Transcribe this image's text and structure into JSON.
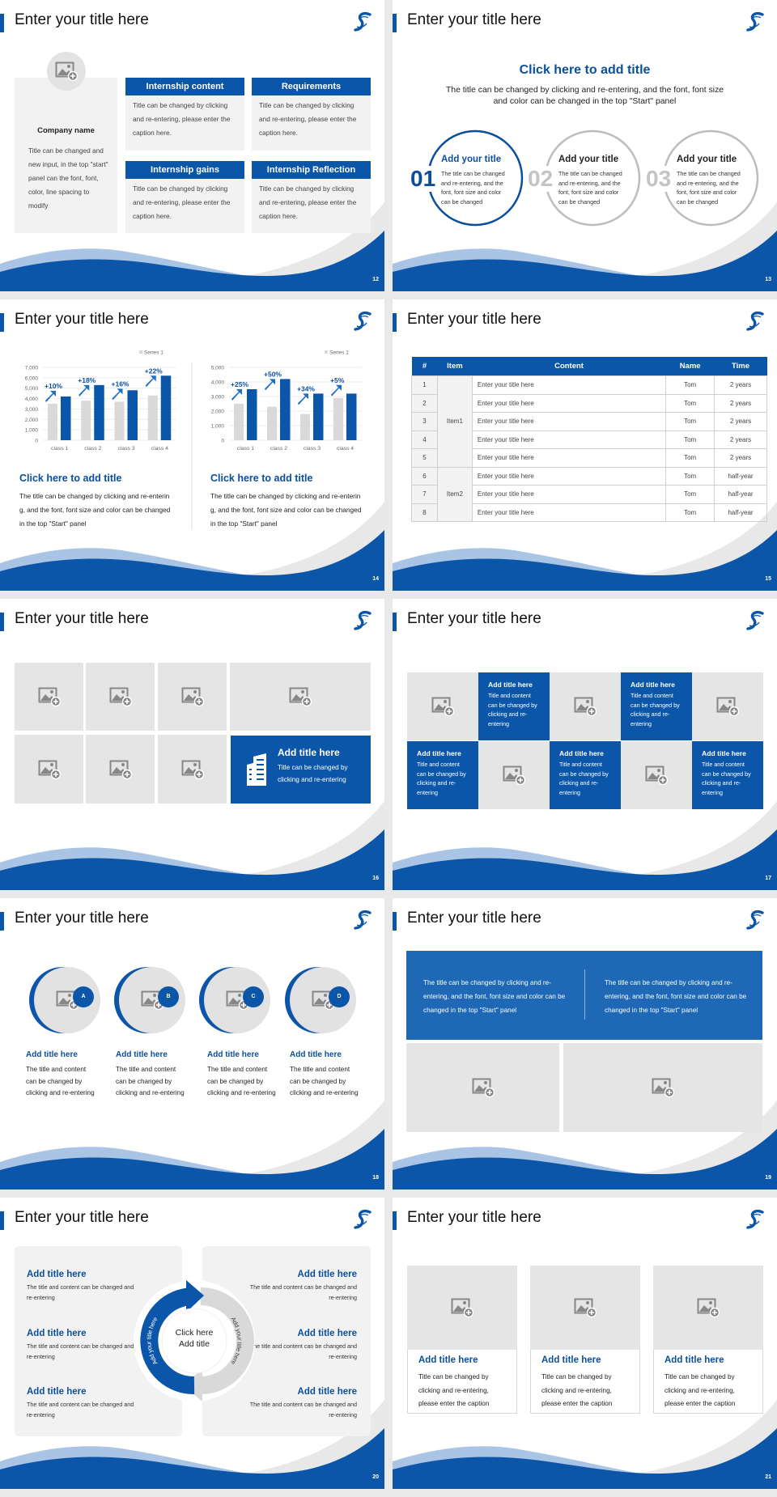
{
  "theme": {
    "blue": "#0b56a8",
    "light_blue": "#a9c4e4",
    "placeholder_gray": "#e6e5e5",
    "panel_gray": "#f2f2f2"
  },
  "icons": {
    "logo": "swirl-s-logo",
    "placeholder": "image-add-icon",
    "building": "building-icon"
  },
  "slides": [
    {
      "title": "Enter your title here",
      "page": "12"
    },
    {
      "title": "Enter your title here",
      "page": "13"
    },
    {
      "title": "Enter your title here",
      "page": "14"
    },
    {
      "title": "Enter your title here",
      "page": "15"
    },
    {
      "title": "Enter your title here",
      "page": "16"
    },
    {
      "title": "Enter your title here",
      "page": "17"
    },
    {
      "title": "Enter your title here",
      "page": "18"
    },
    {
      "title": "Enter your title here",
      "page": "19"
    },
    {
      "title": "Enter your title here",
      "page": "20"
    },
    {
      "title": "Enter your title here",
      "page": "21"
    }
  ],
  "s12": {
    "company": "Company name",
    "company_text": "Title can be changed and new input, in the top \"start\" panel can the font, font, color, line spacing to modify",
    "cards": [
      {
        "header": "Internship content",
        "body": "Title can be changed by clicking and re-entering, please enter the caption here."
      },
      {
        "header": "Requirements",
        "body": "Title can be changed by clicking and re-entering, please enter the caption here."
      },
      {
        "header": "Internship gains",
        "body": "Title can be changed by clicking and re-entering, please enter the caption here."
      },
      {
        "header": "Internship Reflection",
        "body": "Title can be changed by clicking and re-entering, please enter the caption here."
      }
    ]
  },
  "s13": {
    "title": "Click here to add title",
    "subtitle": "The title can be changed by clicking and re-entering, and the font, font size and color can be changed in the top \"Start\" panel",
    "items": [
      {
        "num": "01",
        "title": "Add your title",
        "body": "The title can be changed and re-entering, and the font, font size and color can be changed",
        "active": true
      },
      {
        "num": "02",
        "title": "Add your title",
        "body": "The title can be changed and re-entering, and the font, font size and color can be changed",
        "active": false
      },
      {
        "num": "03",
        "title": "Add your title",
        "body": "The title can be changed and re-entering, and the font, font size and color can be changed",
        "active": false
      }
    ]
  },
  "s14": {
    "panels": [
      {
        "title": "Click here to add title",
        "body": "The title can be changed by clicking and re-entering, and the font, font size and color can be changed in the top \"Start\" panel"
      },
      {
        "title": "Click here to add title",
        "body": "The title can be changed by clicking and re-entering, and the font, font size and color can be changed in the top \"Start\" panel"
      }
    ]
  },
  "chart_data": [
    {
      "type": "bar",
      "categories": [
        "class 1",
        "class 2",
        "class 3",
        "class 4"
      ],
      "series": [
        {
          "name": "Series 1",
          "color": "#d9d9d9",
          "values": [
            3500,
            3800,
            3700,
            4300
          ]
        },
        {
          "color": "#0b56a8",
          "values": [
            4200,
            5300,
            4800,
            6200
          ]
        }
      ],
      "annotations": [
        "+10%",
        "+18%",
        "+16%",
        "+22%"
      ],
      "yticks": [
        "0",
        "1,000",
        "2,000",
        "3,000",
        "4,000",
        "5,000",
        "6,000",
        "7,000"
      ],
      "ylim": [
        0,
        7000
      ],
      "grid": true,
      "legend": "top-right"
    },
    {
      "type": "bar",
      "categories": [
        "class 1",
        "class 2",
        "class 3",
        "class 4"
      ],
      "series": [
        {
          "name": "Series 1",
          "color": "#d9d9d9",
          "values": [
            2500,
            2300,
            1800,
            2900
          ]
        },
        {
          "color": "#0b56a8",
          "values": [
            3500,
            4200,
            3200,
            3200
          ]
        }
      ],
      "annotations": [
        "+25%",
        "+50%",
        "+34%",
        "+5%"
      ],
      "yticks": [
        "0",
        "1,000",
        "2,000",
        "3,000",
        "4,000",
        "5,000"
      ],
      "ylim": [
        0,
        5000
      ],
      "grid": true,
      "legend": "top-right"
    }
  ],
  "s15": {
    "headers": [
      "#",
      "Item",
      "Content",
      "Name",
      "Time"
    ],
    "groups": [
      {
        "label": "Item1",
        "rows": 5
      },
      {
        "label": "Item2",
        "rows": 3
      }
    ],
    "rows": [
      {
        "n": "1",
        "content": "Enter your title here",
        "name": "Tom",
        "time": "2 years"
      },
      {
        "n": "2",
        "content": "Enter your title here",
        "name": "Tom",
        "time": "2 years"
      },
      {
        "n": "3",
        "content": "Enter your title here",
        "name": "Tom",
        "time": "2 years"
      },
      {
        "n": "4",
        "content": "Enter your title here",
        "name": "Tom",
        "time": "2 years"
      },
      {
        "n": "5",
        "content": "Enter your title here",
        "name": "Tom",
        "time": "2 years"
      },
      {
        "n": "6",
        "content": "Enter your title here",
        "name": "Tom",
        "time": "half-year"
      },
      {
        "n": "7",
        "content": "Enter your title here",
        "name": "Tom",
        "time": "half-year"
      },
      {
        "n": "8",
        "content": "Enter your title here",
        "name": "Tom",
        "time": "half-year"
      }
    ]
  },
  "s16": {
    "title": "Add title here",
    "body": "Title can be changed by clicking and re-entering"
  },
  "s17": {
    "items": [
      {
        "title": "Add title here",
        "body": "Title and content can be changed by clicking and re-entering"
      },
      {
        "title": "Add title here",
        "body": "Title and content can be changed by clicking and re-entering"
      },
      {
        "title": "Add title here",
        "body": "Title and content can be changed by clicking and re-entering"
      },
      {
        "title": "Add title here",
        "body": "Title and content can be changed by clicking and re-entering"
      },
      {
        "title": "Add title here",
        "body": "Title and content can be changed by clicking and re-entering"
      }
    ]
  },
  "s18": {
    "items": [
      {
        "badge": "A",
        "title": "Add title here",
        "body": "The title and content can be changed by clicking and re-entering"
      },
      {
        "badge": "B",
        "title": "Add title here",
        "body": "The title and content can be changed by clicking and re-entering"
      },
      {
        "badge": "C",
        "title": "Add title here",
        "body": "The title and content can be changed by clicking and re-entering"
      },
      {
        "badge": "D",
        "title": "Add title here",
        "body": "The title and content can be changed by clicking and re-entering"
      }
    ]
  },
  "s19": {
    "texts": [
      "The title can be changed by clicking and re-entering, and the font, font size and color can be changed in the top \"Start\" panel",
      "The title can be changed by clicking and re-entering, and the font, font size and color can be changed in the top \"Start\" panel"
    ]
  },
  "s20": {
    "center": "Click here Add title",
    "arrow_left": "Add your title here",
    "arrow_right": "Add your title here",
    "items": [
      {
        "title": "Add title here",
        "body": "The title and content can be changed and re-entering"
      },
      {
        "title": "Add title here",
        "body": "The title and content can be changed and re-entering"
      },
      {
        "title": "Add title here",
        "body": "The title and content can be changed and re-entering"
      },
      {
        "title": "Add title here",
        "body": "The title and content can be changed and re-entering"
      },
      {
        "title": "Add title here",
        "body": "The title and content can be changed and re-entering"
      },
      {
        "title": "Add title here",
        "body": "The title and content can be changed and re-entering"
      }
    ]
  },
  "s21": {
    "cards": [
      {
        "title": "Add title here",
        "body": "Title can be changed by clicking and re-entering, please enter the caption"
      },
      {
        "title": "Add title here",
        "body": "Title can be changed by clicking and re-entering, please enter the caption"
      },
      {
        "title": "Add title here",
        "body": "Title can be changed by clicking and re-entering, please enter the caption"
      }
    ]
  }
}
